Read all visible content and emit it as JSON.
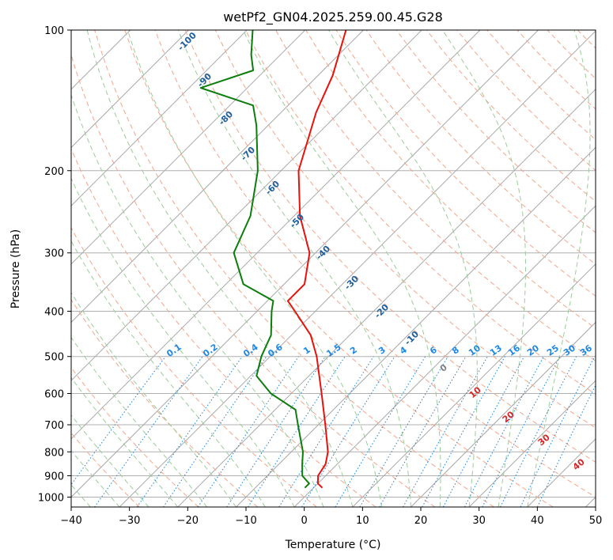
{
  "chart_data": {
    "type": "line",
    "title": "wetPf2_GN04.2025.259.00.45.G28",
    "xlabel": "Temperature (°C)",
    "ylabel": "Pressure (hPa)",
    "xlim": [
      -40,
      50
    ],
    "ylim": [
      1050,
      100
    ],
    "y_scale": "log",
    "grid": true,
    "x_ticks": [
      -40,
      -30,
      -20,
      -10,
      0,
      10,
      20,
      30,
      40,
      50
    ],
    "y_ticks": [
      100,
      200,
      300,
      400,
      500,
      600,
      700,
      800,
      900,
      1000
    ],
    "skew_isotherms": true,
    "series": [
      {
        "color": "#e8120c",
        "points": [
          {
            "p": 955,
            "t": 1.5
          },
          {
            "p": 935,
            "t": 0.0
          },
          {
            "p": 900,
            "t": -1.3
          },
          {
            "p": 850,
            "t": -2.0
          },
          {
            "p": 800,
            "t": -3.7
          },
          {
            "p": 700,
            "t": -8.8
          },
          {
            "p": 600,
            "t": -14.8
          },
          {
            "p": 500,
            "t": -22.0
          },
          {
            "p": 450,
            "t": -26.7
          },
          {
            "p": 400,
            "t": -33.5
          },
          {
            "p": 380,
            "t": -36.5
          },
          {
            "p": 350,
            "t": -36.5
          },
          {
            "p": 300,
            "t": -41.0
          },
          {
            "p": 250,
            "t": -49.0
          },
          {
            "p": 200,
            "t": -57.0
          },
          {
            "p": 150,
            "t": -64.0
          },
          {
            "p": 125,
            "t": -67.5
          },
          {
            "p": 100,
            "t": -73.0
          }
        ]
      },
      {
        "color": "#0b7e0b",
        "points": [
          {
            "p": 955,
            "t": -1.5
          },
          {
            "p": 935,
            "t": -1.5
          },
          {
            "p": 900,
            "t": -4.0
          },
          {
            "p": 850,
            "t": -6.0
          },
          {
            "p": 800,
            "t": -8.0
          },
          {
            "p": 700,
            "t": -13.5
          },
          {
            "p": 650,
            "t": -16.5
          },
          {
            "p": 600,
            "t": -23.5
          },
          {
            "p": 550,
            "t": -29.0
          },
          {
            "p": 500,
            "t": -31.5
          },
          {
            "p": 450,
            "t": -33.5
          },
          {
            "p": 400,
            "t": -37.5
          },
          {
            "p": 380,
            "t": -39.0
          },
          {
            "p": 350,
            "t": -47.0
          },
          {
            "p": 300,
            "t": -54.0
          },
          {
            "p": 250,
            "t": -57.5
          },
          {
            "p": 200,
            "t": -64.0
          },
          {
            "p": 160,
            "t": -72.0
          },
          {
            "p": 145,
            "t": -76.0
          },
          {
            "p": 133,
            "t": -88.0
          },
          {
            "p": 122,
            "t": -82.0
          },
          {
            "p": 113,
            "t": -85.0
          },
          {
            "p": 100,
            "t": -89.0
          }
        ]
      }
    ],
    "mixing_ratio_lines": [
      "0.1",
      "0.2",
      "0.4",
      "0.6",
      "1",
      "1.5",
      "2",
      "3",
      "4",
      "6",
      "8",
      "10",
      "13",
      "16",
      "20",
      "25",
      "30",
      "36"
    ],
    "dry_adiabat_labels": [
      "10",
      "20",
      "30",
      "40"
    ],
    "isotherm_labels": [
      "0"
    ],
    "moist_adiabat_labels": [
      "-100",
      "-90",
      "-80",
      "-70",
      "-60",
      "-50",
      "-40",
      "-30",
      "-20",
      "-10"
    ]
  }
}
